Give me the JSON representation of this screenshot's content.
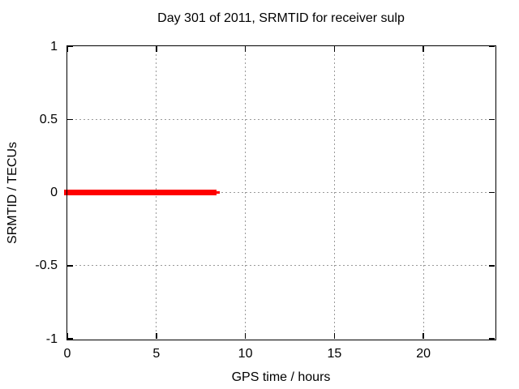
{
  "header": {
    "title": "Day 301 of 2011, SRMTID for receiver sulp"
  },
  "colors": {
    "series": "#ff0000",
    "grid": "#9a9a9a",
    "axis": "#000000",
    "background": "#ffffff"
  },
  "chart_data": {
    "type": "line",
    "title": "Day 301 of 2011, SRMTID for receiver sulp",
    "xlabel": "GPS time / hours",
    "ylabel": "SRMTID / TECUs",
    "xlim": [
      0,
      24
    ],
    "ylim": [
      -1,
      1
    ],
    "grid": true,
    "grid_style": "dotted",
    "legend": "none",
    "x_ticks": [
      {
        "value": 0,
        "label": "0"
      },
      {
        "value": 5,
        "label": "5"
      },
      {
        "value": 10,
        "label": "10"
      },
      {
        "value": 15,
        "label": "15"
      },
      {
        "value": 20,
        "label": "20"
      }
    ],
    "y_ticks": [
      {
        "value": 1,
        "label": "1"
      },
      {
        "value": 0.5,
        "label": "0.5"
      },
      {
        "value": 0,
        "label": "0"
      },
      {
        "value": -0.5,
        "label": "-0.5"
      },
      {
        "value": -1,
        "label": "-1"
      }
    ],
    "series": [
      {
        "name": "SRMTID",
        "color": "#ff0000",
        "description": "constant zero value from hour 0 to about hour 8.4",
        "segments": [
          {
            "x_start": 0,
            "x_end": 8.38,
            "y": 0,
            "thickness_px": 7
          },
          {
            "x_start": 8.38,
            "x_end": 8.56,
            "y": 0,
            "thickness_px": 3
          }
        ]
      }
    ]
  }
}
